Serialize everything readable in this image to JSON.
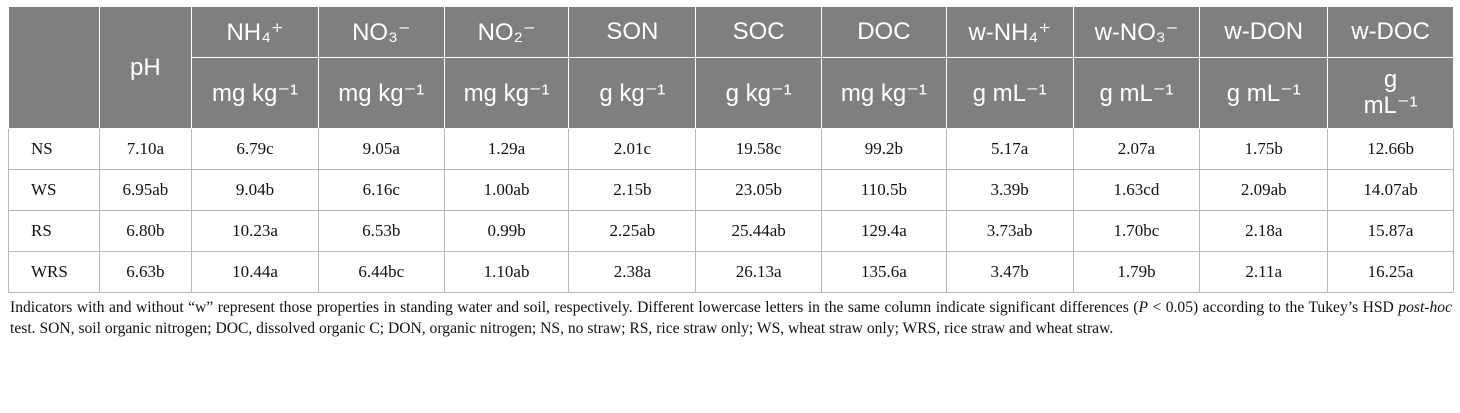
{
  "table": {
    "col_ph": "pH",
    "columns": [
      {
        "name": "NH₄⁺",
        "unit": "mg kg⁻¹"
      },
      {
        "name": "NO₃⁻",
        "unit": "mg kg⁻¹"
      },
      {
        "name": "NO₂⁻",
        "unit": "mg kg⁻¹"
      },
      {
        "name": "SON",
        "unit": "g kg⁻¹"
      },
      {
        "name": "SOC",
        "unit": "g kg⁻¹"
      },
      {
        "name": "DOC",
        "unit": "mg kg⁻¹"
      },
      {
        "name": "w-NH₄⁺",
        "unit": "g mL⁻¹"
      },
      {
        "name": "w-NO₃⁻",
        "unit": "g mL⁻¹"
      },
      {
        "name": "w-DON",
        "unit": "g mL⁻¹"
      },
      {
        "name": "w-DOC",
        "unit_line1": "g",
        "unit_line2": "mL⁻¹"
      }
    ],
    "rows": [
      {
        "label": "NS",
        "cells": [
          "7.10a",
          "6.79c",
          "9.05a",
          "1.29a",
          "2.01c",
          "19.58c",
          "99.2b",
          "5.17a",
          "2.07a",
          "1.75b",
          "12.66b"
        ]
      },
      {
        "label": "WS",
        "cells": [
          "6.95ab",
          "9.04b",
          "6.16c",
          "1.00ab",
          "2.15b",
          "23.05b",
          "110.5b",
          "3.39b",
          "1.63cd",
          "2.09ab",
          "14.07ab"
        ]
      },
      {
        "label": "RS",
        "cells": [
          "6.80b",
          "10.23a",
          "6.53b",
          "0.99b",
          "2.25ab",
          "25.44ab",
          "129.4a",
          "3.73ab",
          "1.70bc",
          "2.18a",
          "15.87a"
        ]
      },
      {
        "label": "WRS",
        "cells": [
          "6.63b",
          "10.44a",
          "6.44bc",
          "1.10ab",
          "2.38a",
          "26.13a",
          "135.6a",
          "3.47b",
          "1.79b",
          "2.11a",
          "16.25a"
        ]
      }
    ]
  },
  "footnote": {
    "part1": "Indicators with and without “w” represent those properties in standing water and soil, respectively. Different lowercase letters in the same column indicate significant differences (",
    "p_symbol": "P",
    "part2": " < 0.05) according to the Tukey’s HSD ",
    "posthoc": "post-hoc",
    "part3": " test. SON, soil organic nitrogen; DOC, dissolved organic C; DON, organic nitrogen; NS, no straw; RS, rice straw only; WS, wheat straw only; WRS, rice straw and wheat straw."
  }
}
